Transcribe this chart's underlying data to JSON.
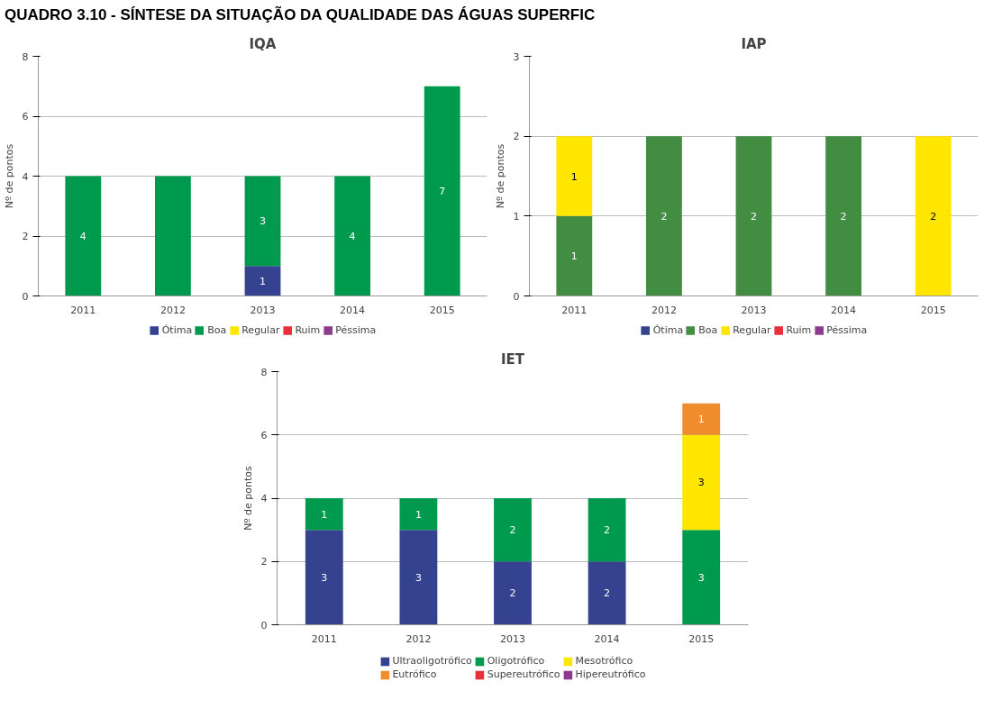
{
  "chart_data": [
    {
      "type": "bar",
      "title": "IQA",
      "ylabel": "Nº de pontos",
      "categories": [
        "2011",
        "2012",
        "2013",
        "2014",
        "2015"
      ],
      "stacked": true,
      "ylim": [
        0,
        8
      ],
      "yticks": [
        0,
        2,
        4,
        6,
        8
      ],
      "grid": "y",
      "legend": "bottom",
      "annotations": [
        "QUADRO 3.10 - SÍNTESE DA SITUAÇÃO DA QUALIDADE DAS ÁGUAS SUPERFIC"
      ],
      "series": [
        {
          "name": "Ótima",
          "color": "#344290",
          "values": [
            null,
            null,
            1,
            null,
            null
          ],
          "value_labels": [
            null,
            null,
            "1",
            null,
            null
          ]
        },
        {
          "name": "Boa",
          "color": "#009a4e",
          "values": [
            4,
            4,
            3,
            4,
            7
          ],
          "value_labels": [
            "4",
            null,
            "3",
            "4",
            "7"
          ]
        },
        {
          "name": "Regular",
          "color": "#ffe600",
          "values": [
            null,
            null,
            null,
            null,
            null
          ]
        },
        {
          "name": "Ruim",
          "color": "#e8303a",
          "values": [
            null,
            null,
            null,
            null,
            null
          ]
        },
        {
          "name": "Péssima",
          "color": "#8e3b8e",
          "values": [
            null,
            null,
            null,
            null,
            null
          ]
        }
      ]
    },
    {
      "type": "bar",
      "title": "IAP",
      "ylabel": "Nº de pontos",
      "categories": [
        "2011",
        "2012",
        "2013",
        "2014",
        "2015"
      ],
      "stacked": true,
      "ylim": [
        0,
        3
      ],
      "yticks": [
        0,
        1,
        2,
        3
      ],
      "grid": "y",
      "legend": "bottom",
      "data_labels": true,
      "series": [
        {
          "name": "Ótima",
          "color": "#344290",
          "values": [
            null,
            null,
            null,
            null,
            null
          ]
        },
        {
          "name": "Boa",
          "color": "#438d43",
          "values": [
            1,
            2,
            2,
            2,
            null
          ]
        },
        {
          "name": "Regular",
          "color": "#ffe600",
          "values": [
            1,
            null,
            null,
            null,
            2
          ]
        },
        {
          "name": "Ruim",
          "color": "#e8303a",
          "values": [
            null,
            null,
            null,
            null,
            null
          ]
        },
        {
          "name": "Péssima",
          "color": "#8e3b8e",
          "values": [
            null,
            null,
            null,
            null,
            null
          ]
        }
      ]
    },
    {
      "type": "bar",
      "title": "IET",
      "ylabel": "Nº de pontos",
      "categories": [
        "2011",
        "2012",
        "2013",
        "2014",
        "2015"
      ],
      "stacked": true,
      "ylim": [
        0,
        8
      ],
      "yticks": [
        0,
        2,
        4,
        6,
        8
      ],
      "grid": "y",
      "legend": "bottom",
      "data_labels": true,
      "series": [
        {
          "name": "Ultraoligotrófico",
          "color": "#344290",
          "values": [
            3,
            3,
            2,
            2,
            null
          ]
        },
        {
          "name": "Oligotrófico",
          "color": "#009a4e",
          "values": [
            1,
            1,
            2,
            2,
            3
          ]
        },
        {
          "name": "Mesotrófico",
          "color": "#ffe600",
          "values": [
            null,
            null,
            null,
            null,
            3
          ]
        },
        {
          "name": "Eutrófico",
          "color": "#ef8c2e",
          "values": [
            null,
            null,
            null,
            null,
            1
          ]
        },
        {
          "name": "Supereutrófico",
          "color": "#e8303a",
          "values": [
            null,
            null,
            null,
            null,
            null
          ]
        },
        {
          "name": "Hipereutrófico",
          "color": "#8e3b8e",
          "values": [
            null,
            null,
            null,
            null,
            null
          ]
        }
      ]
    }
  ]
}
